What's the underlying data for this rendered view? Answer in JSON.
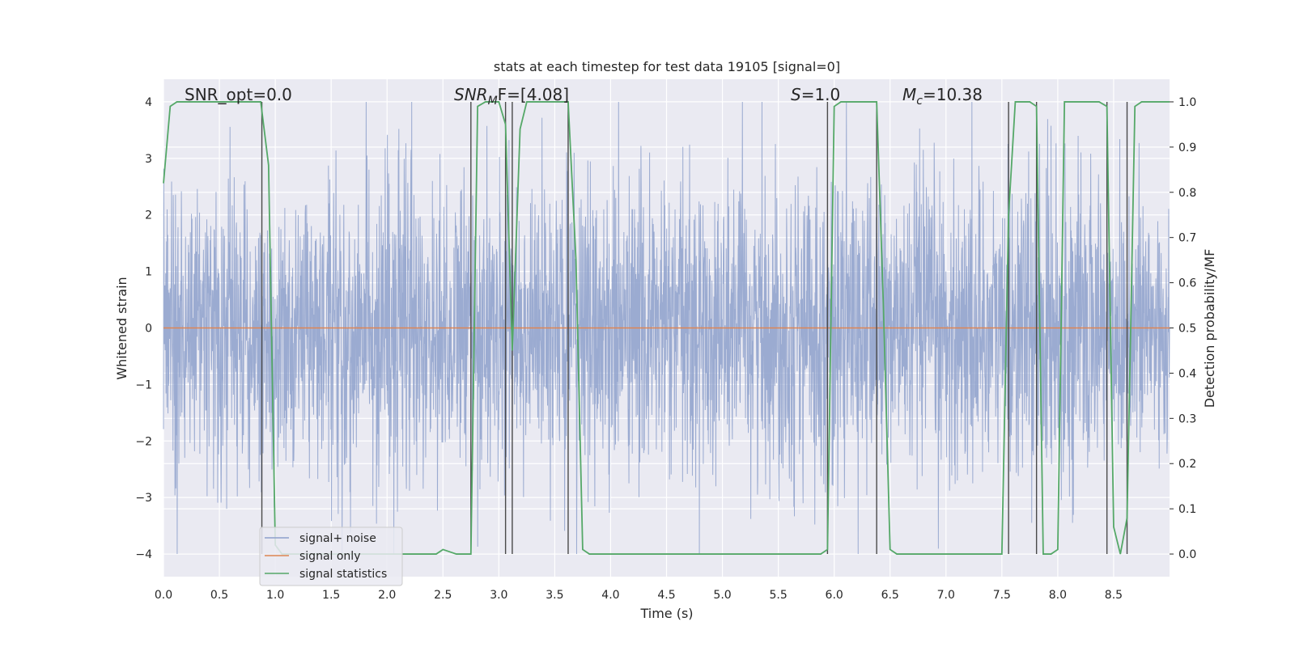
{
  "chart_data": {
    "type": "line",
    "title": "stats at each timestep for test data 19105 [signal=0]",
    "xlabel": "Time (s)",
    "ylabel_left": "Whitened strain",
    "ylabel_right": "Detection probability/MF",
    "xlim": [
      0.0,
      9.0
    ],
    "ylim_left": [
      -4.4,
      4.4
    ],
    "ylim_right": [
      -0.05,
      1.05
    ],
    "x_ticks": [
      0.0,
      0.5,
      1.0,
      1.5,
      2.0,
      2.5,
      3.0,
      3.5,
      4.0,
      4.5,
      5.0,
      5.5,
      6.0,
      6.5,
      7.0,
      7.5,
      8.0,
      8.5
    ],
    "x_tick_labels": [
      "0.0",
      "0.5",
      "1.0",
      "1.5",
      "2.0",
      "2.5",
      "3.0",
      "3.5",
      "4.0",
      "4.5",
      "5.0",
      "5.5",
      "6.0",
      "6.5",
      "7.0",
      "7.5",
      "8.0",
      "8.5"
    ],
    "y_left_ticks": [
      -4,
      -3,
      -2,
      -1,
      0,
      1,
      2,
      3,
      4
    ],
    "y_left_tick_labels": [
      "−4",
      "−3",
      "−2",
      "−1",
      "0",
      "1",
      "2",
      "3",
      "4"
    ],
    "y_right_ticks": [
      0.0,
      0.1,
      0.2,
      0.3,
      0.4,
      0.5,
      0.6,
      0.7,
      0.8,
      0.9,
      1.0
    ],
    "y_right_tick_labels": [
      "0.0",
      "0.1",
      "0.2",
      "0.3",
      "0.4",
      "0.5",
      "0.6",
      "0.7",
      "0.8",
      "0.9",
      "1.0"
    ],
    "grid": true,
    "legend_placement": "lower-left",
    "annotations": {
      "snr_opt": "SNR_opt=0.0",
      "snr_mf_part1": "SNR",
      "snr_mf_sub": "M",
      "snr_mf_part2": "F=[4.08]",
      "s_part1": "S",
      "s_part2": "=1.0",
      "mc_part1": "M",
      "mc_sub": "c",
      "mc_part2": "=10.38"
    },
    "vertical_lines_x": [
      0.88,
      2.75,
      3.06,
      3.12,
      3.62,
      5.94,
      6.38,
      7.56,
      7.81,
      8.44,
      8.62
    ],
    "series": [
      {
        "name": "signal+ noise",
        "color": "#8da0cb",
        "axis": "left",
        "duration_s": 9.0,
        "typical_amplitude": 1.3,
        "peak_amplitude": 4.0
      },
      {
        "name": "signal only",
        "color": "#dd8452",
        "axis": "left",
        "x": [
          0.0,
          9.0
        ],
        "y": [
          0.0,
          0.0
        ]
      },
      {
        "name": "signal statistics",
        "color": "#55a868",
        "axis": "right",
        "x": [
          0.0,
          0.06,
          0.12,
          0.2,
          0.5,
          0.7,
          0.87,
          0.94,
          1.0,
          1.06,
          1.5,
          2.0,
          2.44,
          2.5,
          2.62,
          2.75,
          2.81,
          2.88,
          2.94,
          3.0,
          3.06,
          3.12,
          3.19,
          3.25,
          3.5,
          3.62,
          3.69,
          3.75,
          3.81,
          3.9,
          4.5,
          5.0,
          5.5,
          5.88,
          5.94,
          6.0,
          6.06,
          6.2,
          6.38,
          6.44,
          6.5,
          6.56,
          7.0,
          7.5,
          7.56,
          7.62,
          7.75,
          7.81,
          7.87,
          7.94,
          8.0,
          8.06,
          8.2,
          8.37,
          8.44,
          8.5,
          8.56,
          8.62,
          8.69,
          8.75,
          9.0
        ],
        "y": [
          0.82,
          0.99,
          1.0,
          1.0,
          1.0,
          1.0,
          1.0,
          0.86,
          0.02,
          0.0,
          0.0,
          0.0,
          0.0,
          0.01,
          0.0,
          0.0,
          0.99,
          1.0,
          1.0,
          1.0,
          0.95,
          0.45,
          0.94,
          1.0,
          1.0,
          1.0,
          0.65,
          0.01,
          0.0,
          0.0,
          0.0,
          0.0,
          0.0,
          0.0,
          0.01,
          0.99,
          1.0,
          1.0,
          1.0,
          0.55,
          0.01,
          0.0,
          0.0,
          0.0,
          0.75,
          1.0,
          1.0,
          0.99,
          0.0,
          0.0,
          0.01,
          1.0,
          1.0,
          1.0,
          0.99,
          0.06,
          0.0,
          0.08,
          0.99,
          1.0,
          1.0
        ]
      }
    ]
  }
}
